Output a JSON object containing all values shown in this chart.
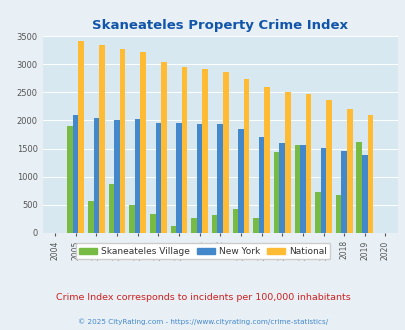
{
  "title": "Skaneateles Property Crime Index",
  "subtitle": "Crime Index corresponds to incidents per 100,000 inhabitants",
  "footer": "© 2025 CityRating.com - https://www.cityrating.com/crime-statistics/",
  "years": [
    2004,
    2005,
    2006,
    2007,
    2008,
    2009,
    2010,
    2011,
    2012,
    2013,
    2014,
    2015,
    2016,
    2017,
    2018,
    2019,
    2020
  ],
  "skaneateles": [
    0,
    1900,
    560,
    870,
    490,
    340,
    120,
    270,
    310,
    430,
    270,
    1430,
    1560,
    730,
    680,
    1620,
    0
  ],
  "new_york": [
    0,
    2090,
    2050,
    2000,
    2020,
    1950,
    1950,
    1930,
    1930,
    1840,
    1710,
    1590,
    1560,
    1510,
    1460,
    1380,
    0
  ],
  "national": [
    0,
    3420,
    3350,
    3270,
    3220,
    3050,
    2960,
    2910,
    2860,
    2730,
    2600,
    2510,
    2480,
    2370,
    2210,
    2100,
    0
  ],
  "color_skaneateles": "#77bb44",
  "color_new_york": "#4488cc",
  "color_national": "#ffbb33",
  "bg_color": "#e8f0f5",
  "plot_bg": "#d8e8f0",
  "title_color": "#1155aa",
  "subtitle_color": "#cc2222",
  "footer_color": "#4488cc",
  "legend_labels": [
    "Skaneateles Village",
    "New York",
    "National"
  ],
  "ylim": [
    0,
    3500
  ],
  "yticks": [
    0,
    500,
    1000,
    1500,
    2000,
    2500,
    3000,
    3500
  ],
  "bar_width": 0.27
}
